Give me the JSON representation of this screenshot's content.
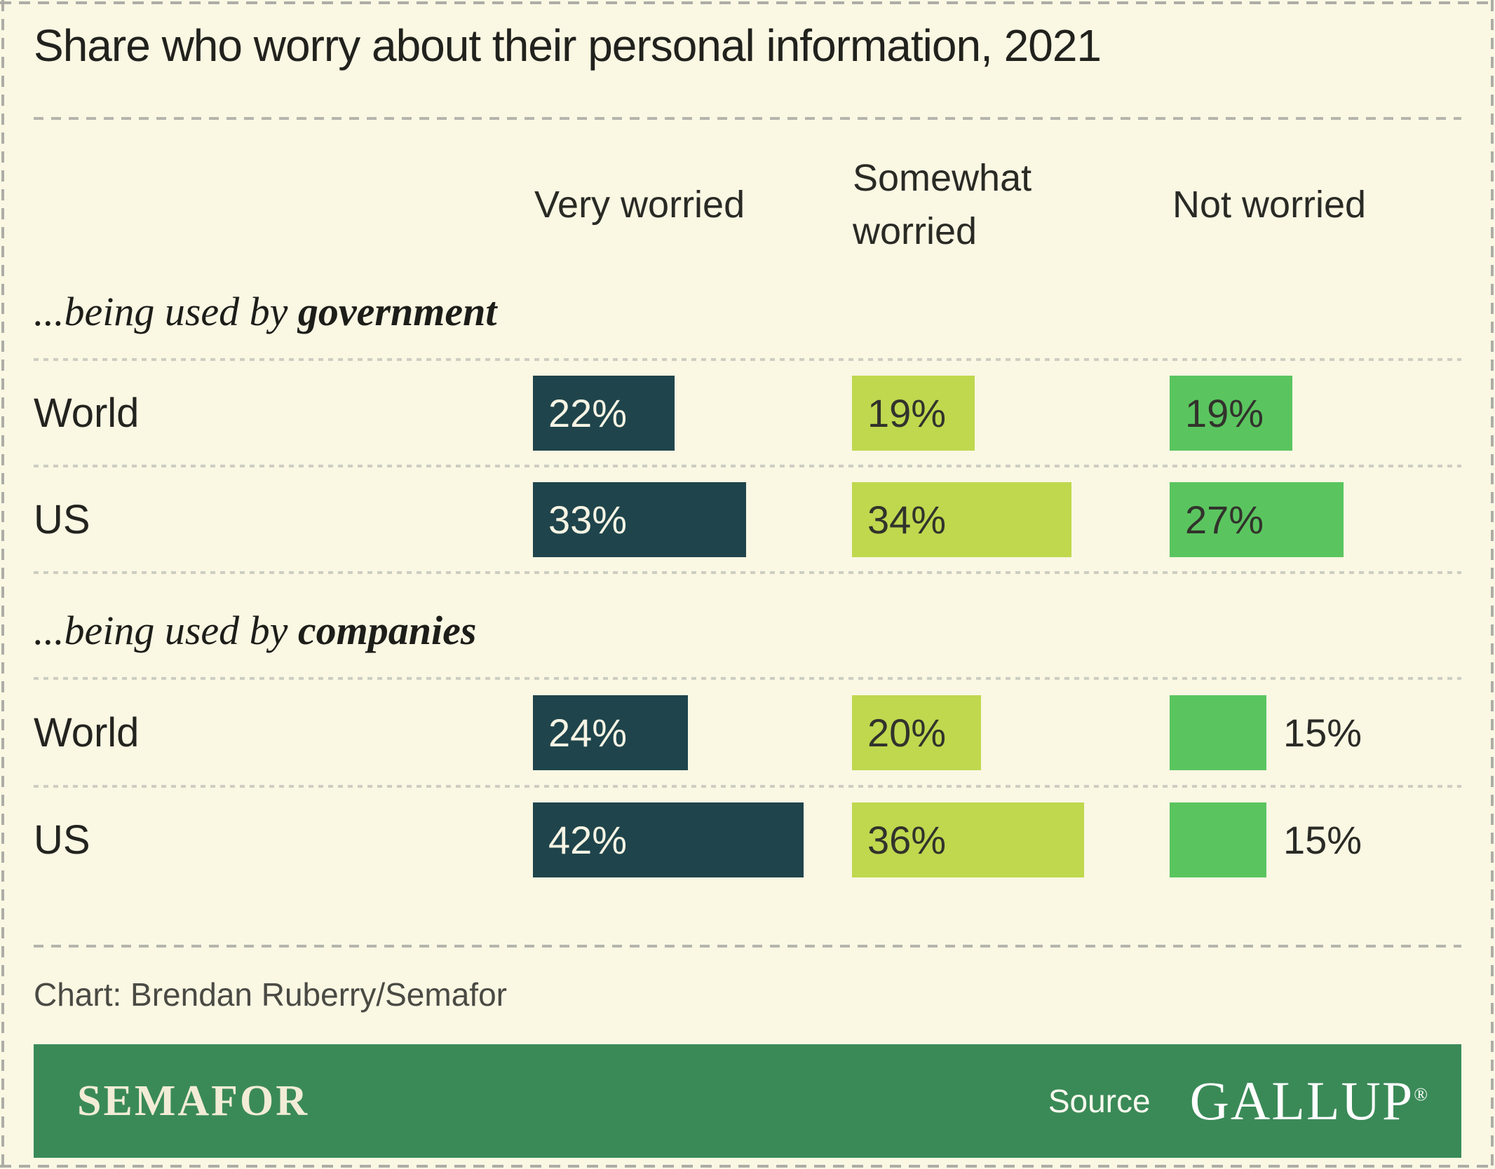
{
  "title": "Share who worry about their personal information, 2021",
  "columns": [
    "Very worried",
    "Somewhat worried",
    "Not worried"
  ],
  "chart_data": {
    "type": "bar",
    "unit": "%",
    "orientation": "horizontal",
    "column_headers": [
      "Very worried",
      "Somewhat worried",
      "Not worried"
    ],
    "series_colors": {
      "very_worried": "#1f444b",
      "somewhat_worried": "#bfd84e",
      "not_worried": "#5ac55f"
    },
    "groups": [
      {
        "label_prefix": "...being used by ",
        "label_emphasis": "government",
        "rows": [
          {
            "category": "World",
            "values": [
              22,
              19,
              19
            ]
          },
          {
            "category": "US",
            "values": [
              33,
              34,
              27
            ]
          }
        ]
      },
      {
        "label_prefix": "...being used by ",
        "label_emphasis": "companies",
        "rows": [
          {
            "category": "World",
            "values": [
              24,
              20,
              15
            ]
          },
          {
            "category": "US",
            "values": [
              42,
              36,
              15
            ]
          }
        ]
      }
    ]
  },
  "credit": "Chart: Brendan Ruberry/Semafor",
  "footer": {
    "brand": "SEMAFOR",
    "source_label": "Source",
    "source_name": "GALLUP",
    "registered_mark": "®"
  },
  "colors": {
    "background": "#faf7e3",
    "footer_bar": "#3a8a57",
    "bar_dark_teal": "#1f444b",
    "bar_yellow_green": "#bfd84e",
    "bar_green": "#5ac55f"
  }
}
